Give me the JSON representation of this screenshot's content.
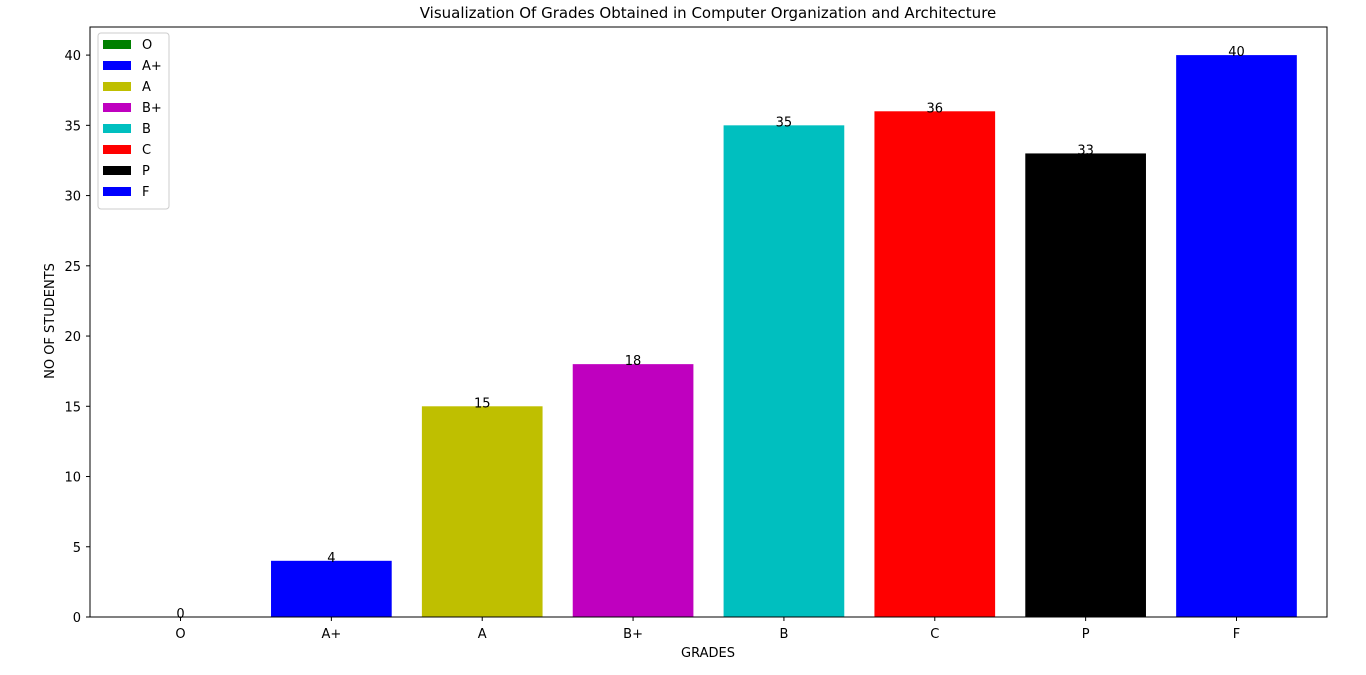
{
  "chart_data": {
    "type": "bar",
    "title": "Visualization Of Grades Obtained in Computer Organization and Architecture",
    "xlabel": "GRADES",
    "ylabel": "NO OF STUDENTS",
    "categories": [
      "O",
      "A+",
      "A",
      "B+",
      "B",
      "C",
      "P",
      "F"
    ],
    "values": [
      0,
      4,
      15,
      18,
      35,
      36,
      33,
      40
    ],
    "colors": [
      "#008000",
      "#0000ff",
      "#bfbf00",
      "#bf00bf",
      "#00bfbf",
      "#ff0000",
      "#000000",
      "#0000ff"
    ],
    "ylim": [
      0,
      42
    ],
    "yticks": [
      0,
      5,
      10,
      15,
      20,
      25,
      30,
      35,
      40
    ],
    "grid": false,
    "legend": {
      "position": "top-left",
      "entries": [
        "O",
        "A+",
        "A",
        "B+",
        "B",
        "C",
        "P",
        "F"
      ]
    }
  }
}
